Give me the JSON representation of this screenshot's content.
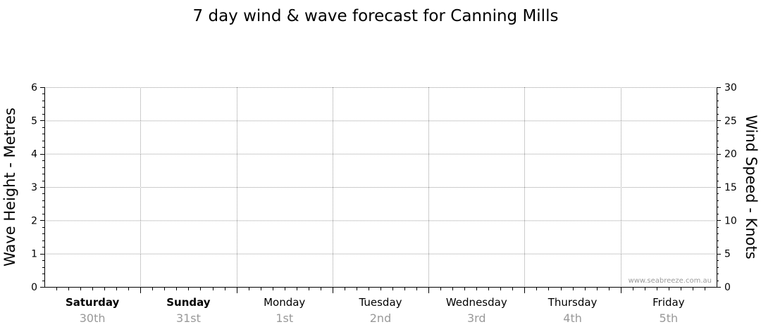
{
  "chart_data": {
    "type": "line",
    "title": "7 day wind & wave forecast for Canning Mills",
    "ylabel_left": "Wave Height - Metres",
    "ylabel_right": "Wind Speed - Knots",
    "ylim_left": [
      0,
      6
    ],
    "ylim_right": [
      0,
      30
    ],
    "yticks_left": [
      "0",
      "1",
      "2",
      "3",
      "4",
      "5",
      "6"
    ],
    "yticks_right": [
      "0",
      "5",
      "10",
      "15",
      "20",
      "25",
      "30"
    ],
    "grid": true,
    "days": [
      {
        "day": "Saturday",
        "date": "30th",
        "bold": true
      },
      {
        "day": "Sunday",
        "date": "31st",
        "bold": true
      },
      {
        "day": "Monday",
        "date": "1st",
        "bold": false
      },
      {
        "day": "Tuesday",
        "date": "2nd",
        "bold": false
      },
      {
        "day": "Wednesday",
        "date": "3rd",
        "bold": false
      },
      {
        "day": "Thursday",
        "date": "4th",
        "bold": false
      },
      {
        "day": "Friday",
        "date": "5th",
        "bold": false
      }
    ],
    "series": []
  },
  "watermark": "www.seabreeze.com.au"
}
